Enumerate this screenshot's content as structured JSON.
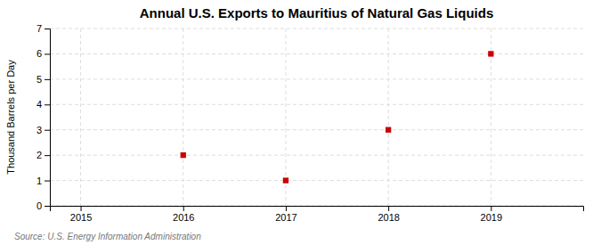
{
  "chart_data": {
    "type": "scatter",
    "title": "Annual U.S. Exports to Mauritius of Natural Gas Liquids",
    "ylabel": "Thousand Barrels per Day",
    "annotations": [
      "Source: U.S. Energy Information Administration"
    ],
    "x": [
      2016,
      2017,
      2018,
      2019
    ],
    "values": [
      2,
      1,
      3,
      6
    ],
    "color": "#cc0000",
    "marker": "square",
    "xlim": [
      2014.7,
      2019.9
    ],
    "ylim": [
      0,
      7
    ],
    "xticks": [
      2015,
      2016,
      2017,
      2018,
      2019
    ],
    "yticks": [
      0,
      1,
      2,
      3,
      4,
      5,
      6,
      7
    ],
    "grid": true
  }
}
